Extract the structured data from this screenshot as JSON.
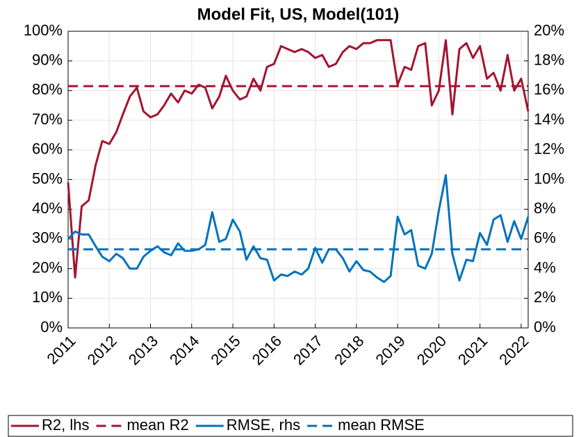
{
  "chart_data": {
    "type": "line",
    "title": "Model Fit, US, Model(101)",
    "x": [
      2011.0,
      2011.17,
      2011.33,
      2011.5,
      2011.67,
      2011.83,
      2012.0,
      2012.17,
      2012.33,
      2012.5,
      2012.67,
      2012.83,
      2013.0,
      2013.17,
      2013.33,
      2013.5,
      2013.67,
      2013.83,
      2014.0,
      2014.17,
      2014.33,
      2014.5,
      2014.67,
      2014.83,
      2015.0,
      2015.17,
      2015.33,
      2015.5,
      2015.67,
      2015.83,
      2016.0,
      2016.17,
      2016.33,
      2016.5,
      2016.67,
      2016.83,
      2017.0,
      2017.17,
      2017.33,
      2017.5,
      2017.67,
      2017.83,
      2018.0,
      2018.17,
      2018.33,
      2018.5,
      2018.67,
      2018.83,
      2019.0,
      2019.17,
      2019.33,
      2019.5,
      2019.67,
      2019.83,
      2020.0,
      2020.17,
      2020.33,
      2020.5,
      2020.67,
      2020.83,
      2021.0,
      2021.17,
      2021.33,
      2021.5,
      2021.67,
      2021.83,
      2022.0,
      2022.17
    ],
    "series": [
      {
        "name": "R2, lhs",
        "color": "#a2142f",
        "axis": "y",
        "style": "solid",
        "values": [
          49,
          17,
          41,
          43,
          55,
          63,
          62,
          66,
          72,
          78,
          81,
          73,
          71,
          72,
          75,
          79,
          76,
          80,
          79,
          82,
          81,
          74,
          78,
          85,
          80,
          77,
          78,
          84,
          80,
          88,
          89,
          95,
          94,
          93,
          94,
          93,
          91,
          92,
          88,
          89,
          93,
          95,
          94,
          96,
          96,
          97,
          97,
          97,
          82,
          88,
          87,
          95,
          96,
          75,
          80,
          97,
          72,
          94,
          96,
          91,
          95,
          84,
          86,
          80,
          92,
          80,
          84,
          73
        ]
      },
      {
        "name": "mean R2",
        "color": "#a2142f",
        "axis": "y",
        "style": "dashed",
        "value": 81.5
      },
      {
        "name": "RMSE, rhs",
        "color": "#0072bd",
        "axis": "y2",
        "style": "solid",
        "values": [
          6.0,
          6.5,
          6.3,
          6.3,
          5.5,
          4.8,
          4.5,
          5.0,
          4.7,
          4.0,
          4.0,
          4.8,
          5.2,
          5.5,
          5.1,
          4.9,
          5.7,
          5.2,
          5.2,
          5.3,
          5.6,
          7.8,
          5.8,
          6.0,
          7.3,
          6.5,
          4.6,
          5.5,
          4.7,
          4.6,
          3.2,
          3.6,
          3.5,
          3.8,
          3.6,
          4.0,
          5.4,
          4.4,
          5.3,
          5.3,
          4.7,
          3.8,
          4.5,
          3.9,
          3.8,
          3.4,
          3.1,
          3.5,
          7.5,
          6.3,
          6.6,
          4.2,
          4.0,
          5.0,
          7.9,
          10.3,
          5.0,
          3.2,
          4.6,
          4.5,
          6.4,
          5.6,
          7.3,
          7.6,
          5.8,
          7.2,
          6.0,
          7.5
        ]
      },
      {
        "name": "mean RMSE",
        "color": "#0072bd",
        "axis": "y2",
        "style": "dashed",
        "value": 5.3
      }
    ],
    "xlim": [
      2011,
      2022.17
    ],
    "xticks": [
      2011,
      2012,
      2013,
      2014,
      2015,
      2016,
      2017,
      2018,
      2019,
      2020,
      2021,
      2022
    ],
    "ylim": [
      0,
      100
    ],
    "yticks": [
      {
        "value": 0,
        "label": "0%"
      },
      {
        "value": 10,
        "label": "10%"
      },
      {
        "value": 20,
        "label": "20%"
      },
      {
        "value": 30,
        "label": "30%"
      },
      {
        "value": 40,
        "label": "40%"
      },
      {
        "value": 50,
        "label": "50%"
      },
      {
        "value": 60,
        "label": "60%"
      },
      {
        "value": 70,
        "label": "70%"
      },
      {
        "value": 80,
        "label": "80%"
      },
      {
        "value": 90,
        "label": "90%"
      },
      {
        "value": 100,
        "label": "100%"
      }
    ],
    "y2lim": [
      0,
      20
    ],
    "y2ticks": [
      {
        "value": 0,
        "label": "0%"
      },
      {
        "value": 2,
        "label": "2%"
      },
      {
        "value": 4,
        "label": "4%"
      },
      {
        "value": 6,
        "label": "6%"
      },
      {
        "value": 8,
        "label": "8%"
      },
      {
        "value": 10,
        "label": "10%"
      },
      {
        "value": 12,
        "label": "12%"
      },
      {
        "value": 14,
        "label": "14%"
      },
      {
        "value": 16,
        "label": "16%"
      },
      {
        "value": 18,
        "label": "18%"
      },
      {
        "value": 20,
        "label": "20%"
      }
    ],
    "grid": true,
    "legend": "bottom"
  }
}
